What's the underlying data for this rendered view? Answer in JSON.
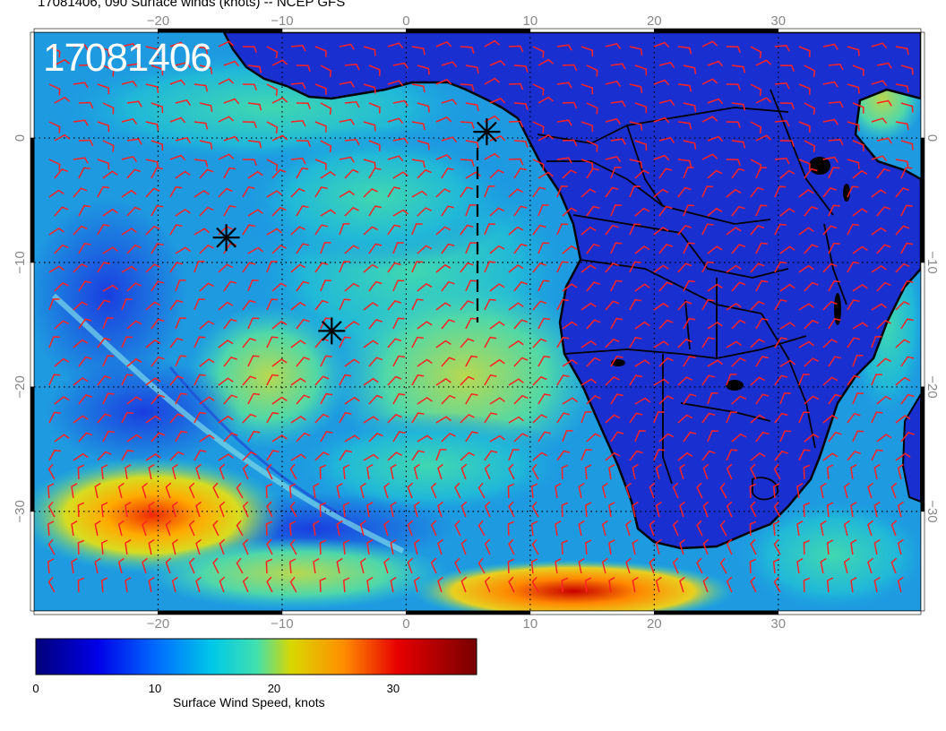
{
  "title": "17081406, 090 Surface winds (knots) -- NCEP GFS",
  "stamp": "17081406",
  "map": {
    "lon_ticks": [
      -20,
      -10,
      0,
      10,
      20,
      30
    ],
    "lon_tick_labels": [
      "−20",
      "−10",
      "0",
      "10",
      "20",
      "30"
    ],
    "lat_ticks": [
      0,
      -10,
      -20,
      -30
    ],
    "lat_tick_labels": [
      "0",
      "−10",
      "−20",
      "−30"
    ],
    "lon_range": [
      -30,
      41.5
    ],
    "lat_range": [
      8.5,
      -38
    ],
    "gridlines": "dotted",
    "wind_barb_color": "#ff2222",
    "land_color": "#1a2fd0",
    "coastline_color": "#000000",
    "markers": [
      {
        "lon": 6.5,
        "lat": 0.5
      },
      {
        "lon": -14.5,
        "lat": -8
      },
      {
        "lon": -6,
        "lat": -15.5
      }
    ]
  },
  "colorbar": {
    "label": "Surface Wind Speed, knots",
    "ticks": [
      0,
      10,
      20,
      30
    ],
    "tick_labels": [
      "0",
      "10",
      "20",
      "30"
    ],
    "range": [
      0,
      37
    ],
    "colors": [
      "#000080",
      "#0000ff",
      "#0088ff",
      "#00d8d8",
      "#c8d800",
      "#ff9900",
      "#ee0000",
      "#800000"
    ]
  }
}
